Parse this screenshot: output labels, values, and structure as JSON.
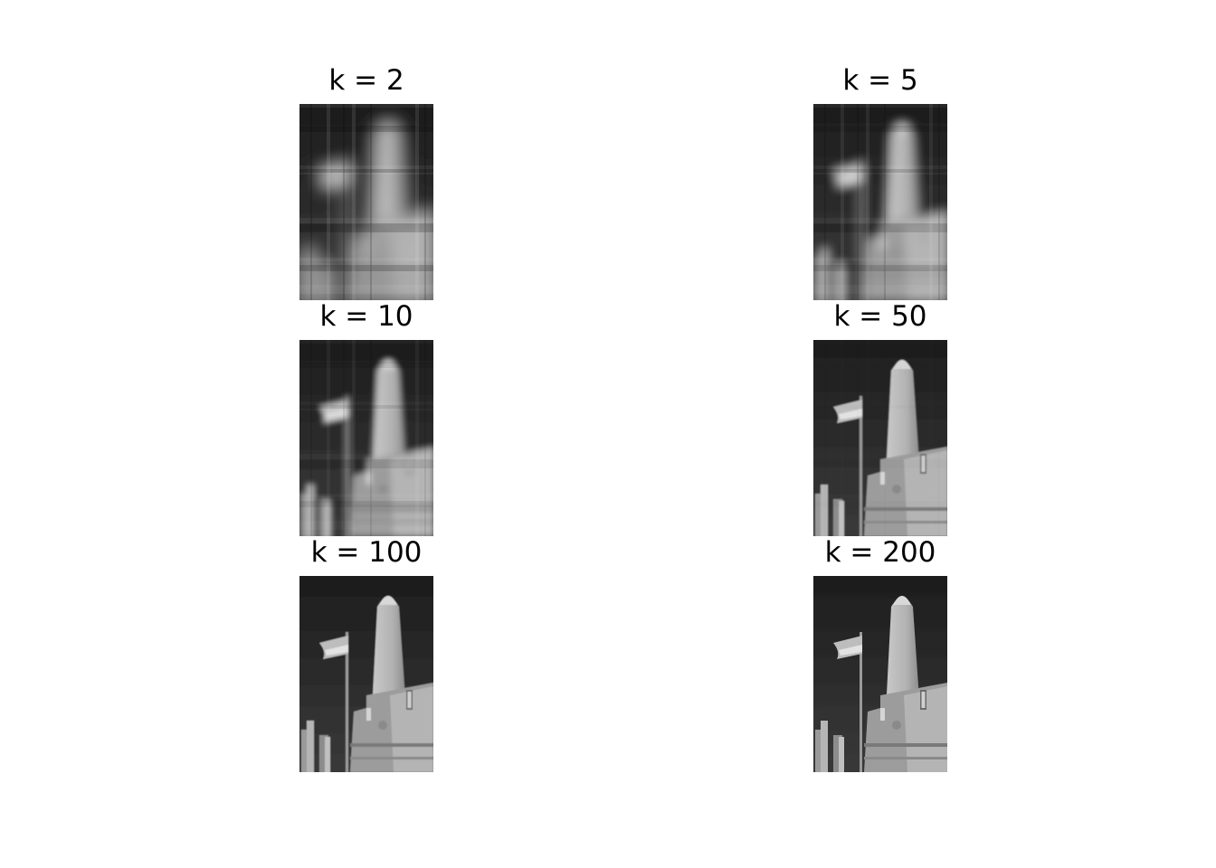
{
  "panels": [
    {
      "title": "k = 2",
      "blur": 9.0,
      "blocky": 1.0
    },
    {
      "title": "k = 5",
      "blur": 5.5,
      "blocky": 0.75
    },
    {
      "title": "k = 10",
      "blur": 3.2,
      "blocky": 0.5
    },
    {
      "title": "k = 50",
      "blur": 0.9,
      "blocky": 0.08
    },
    {
      "title": "k = 100",
      "blur": 0.45,
      "blocky": 0.0
    },
    {
      "title": "k = 200",
      "blur": 0.2,
      "blocky": 0.0
    }
  ]
}
